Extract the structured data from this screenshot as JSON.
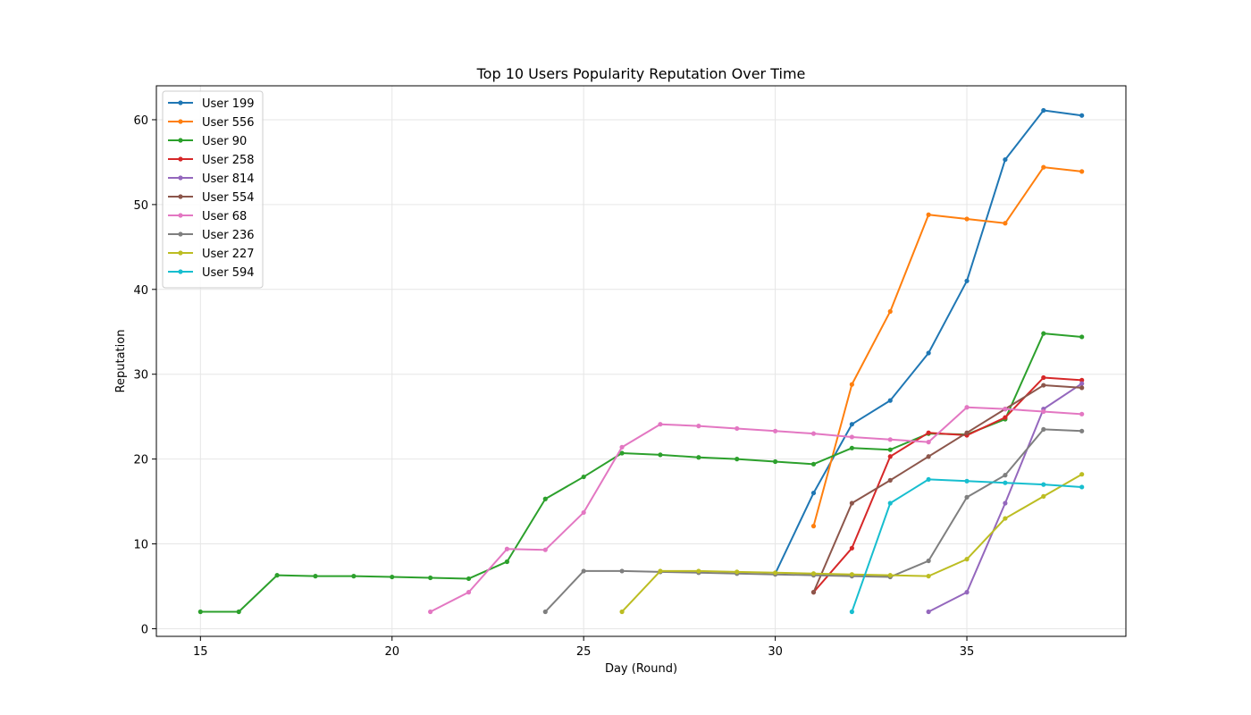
{
  "chart_data": {
    "type": "line",
    "title": "Top 10 Users Popularity Reputation Over Time",
    "xlabel": "Day (Round)",
    "ylabel": "Reputation",
    "xlim": [
      13.85,
      39.15
    ],
    "ylim": [
      -0.9,
      64
    ],
    "xticks": [
      15,
      20,
      25,
      30,
      35
    ],
    "yticks": [
      0,
      10,
      20,
      30,
      40,
      50,
      60
    ],
    "grid": true,
    "legend_position": "upper-left",
    "series": [
      {
        "name": "User 199",
        "color": "#1f77b4",
        "x": [
          30,
          31,
          32,
          33,
          34,
          35,
          36,
          37,
          38
        ],
        "y": [
          6.5,
          16.0,
          24.1,
          26.9,
          32.5,
          41.0,
          55.3,
          61.1,
          60.5
        ]
      },
      {
        "name": "User 556",
        "color": "#ff7f0e",
        "x": [
          31,
          32,
          33,
          34,
          35,
          36,
          37,
          38
        ],
        "y": [
          12.1,
          28.8,
          37.4,
          48.8,
          48.3,
          47.8,
          54.4,
          53.9
        ]
      },
      {
        "name": "User 90",
        "color": "#2ca02c",
        "x": [
          15,
          16,
          17,
          18,
          19,
          20,
          21,
          22,
          23,
          24,
          25,
          26,
          27,
          28,
          29,
          30,
          31,
          32,
          33,
          34,
          35,
          36,
          37,
          38
        ],
        "y": [
          2.0,
          2.0,
          6.3,
          6.2,
          6.2,
          6.1,
          6.0,
          5.9,
          7.9,
          15.3,
          17.9,
          20.7,
          20.5,
          20.2,
          20.0,
          19.7,
          19.4,
          21.3,
          21.1,
          23.0,
          22.9,
          24.7,
          34.8,
          34.4
        ]
      },
      {
        "name": "User 258",
        "color": "#d62728",
        "x": [
          31,
          32,
          33,
          34,
          35,
          36,
          37,
          38
        ],
        "y": [
          4.3,
          9.5,
          20.3,
          23.1,
          22.8,
          24.9,
          29.6,
          29.3
        ]
      },
      {
        "name": "User 814",
        "color": "#9467bd",
        "x": [
          34,
          35,
          36,
          37,
          38
        ],
        "y": [
          2.0,
          4.3,
          14.8,
          25.9,
          28.9
        ]
      },
      {
        "name": "User 554",
        "color": "#8c564b",
        "x": [
          31,
          32,
          33,
          34,
          35,
          36,
          37,
          38
        ],
        "y": [
          4.3,
          14.8,
          17.5,
          20.3,
          23.1,
          25.9,
          28.7,
          28.4
        ]
      },
      {
        "name": "User 68",
        "color": "#e377c2",
        "x": [
          21,
          22,
          23,
          24,
          25,
          26,
          27,
          28,
          29,
          30,
          31,
          32,
          33,
          34,
          35,
          36,
          37,
          38
        ],
        "y": [
          2.0,
          4.3,
          9.4,
          9.3,
          13.7,
          21.4,
          24.1,
          23.9,
          23.6,
          23.3,
          23.0,
          22.6,
          22.3,
          22.0,
          26.1,
          25.9,
          25.6,
          25.3
        ]
      },
      {
        "name": "User 236",
        "color": "#7f7f7f",
        "x": [
          24,
          25,
          26,
          27,
          28,
          29,
          30,
          31,
          32,
          33,
          34,
          35,
          36,
          37,
          38
        ],
        "y": [
          2.0,
          6.8,
          6.8,
          6.7,
          6.6,
          6.5,
          6.4,
          6.3,
          6.2,
          6.1,
          8.0,
          15.5,
          18.1,
          23.5,
          23.3
        ]
      },
      {
        "name": "User 227",
        "color": "#bcbd22",
        "x": [
          26,
          27,
          28,
          29,
          30,
          31,
          32,
          33,
          34,
          35,
          36,
          37,
          38
        ],
        "y": [
          2.0,
          6.8,
          6.8,
          6.7,
          6.6,
          6.5,
          6.4,
          6.3,
          6.2,
          8.2,
          13.0,
          15.6,
          18.2
        ]
      },
      {
        "name": "User 594",
        "color": "#17becf",
        "x": [
          32,
          33,
          34,
          35,
          36,
          37,
          38
        ],
        "y": [
          2.0,
          14.8,
          17.6,
          17.4,
          17.2,
          17.0,
          16.7
        ]
      }
    ]
  }
}
